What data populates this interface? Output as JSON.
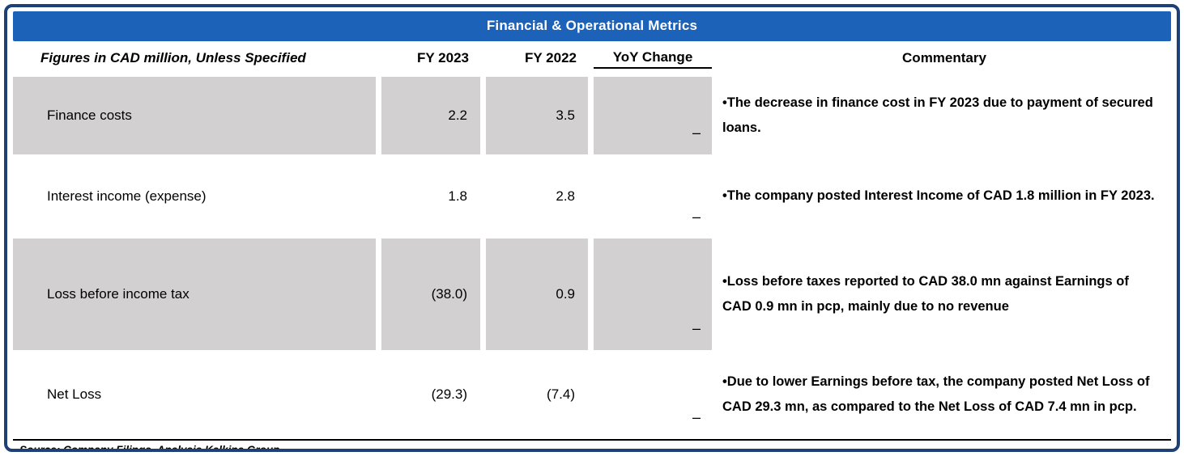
{
  "title": "Financial & Operational Metrics",
  "table": {
    "headers": {
      "label": "Figures in CAD million, Unless Specified",
      "fy2023": "FY 2023",
      "fy2022": "FY 2022",
      "yoy": "YoY Change",
      "commentary": "Commentary"
    },
    "rows": [
      {
        "label": "Finance costs",
        "fy2023": "2.2",
        "fy2022": "3.5",
        "yoy": "–",
        "commentary": "•The decrease in finance cost in FY 2023 due to payment of secured loans."
      },
      {
        "label": "Interest income (expense)",
        "fy2023": "1.8",
        "fy2022": "2.8",
        "yoy": "–",
        "commentary": "•The company posted Interest Income of CAD 1.8 million in FY 2023."
      },
      {
        "label": "Loss  before income tax",
        "fy2023": "(38.0)",
        "fy2022": "0.9",
        "yoy": "–",
        "commentary": "•Loss before taxes reported to CAD 38.0  mn against Earnings of  CAD 0.9 mn in pcp, mainly due to no revenue"
      },
      {
        "label": "Net Loss",
        "fy2023": "(29.3)",
        "fy2022": "(7.4)",
        "yoy": "–",
        "commentary": "•Due to lower Earnings before tax, the company posted Net Loss of CAD 29.3 mn, as compared to the Net Loss of CAD 7.4 mn in pcp."
      }
    ]
  },
  "footer": {
    "source": "Source: Company Filings, Analysis Kalkine Group"
  },
  "colors": {
    "title_bg": "#1b62b8",
    "row_shade": "#d2d0d0",
    "border": "#1f3f77"
  }
}
